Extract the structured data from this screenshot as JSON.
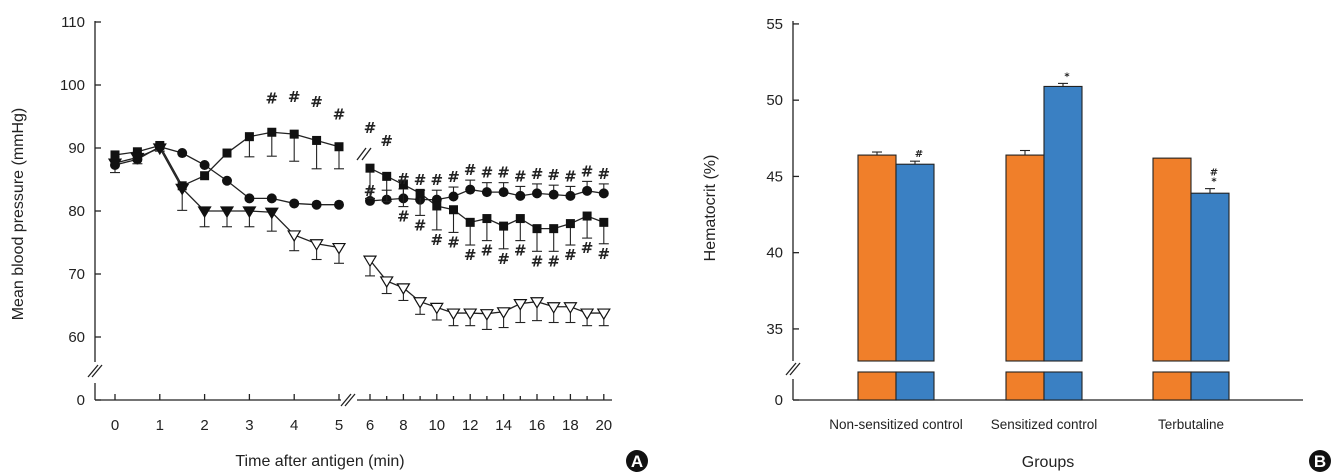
{
  "chart_data": [
    {
      "type": "line",
      "panel_label": "A",
      "xlabel": "Time after antigen (min)",
      "ylabel": "Mean blood pressure (mmHg)",
      "ylim": [
        0,
        110
      ],
      "yticks": [
        "0",
        "60",
        "70",
        "80",
        "90",
        "100",
        "110"
      ],
      "xticks": [
        "0",
        "1",
        "2",
        "3",
        "4",
        "5",
        "6",
        "8",
        "10",
        "12",
        "14",
        "16",
        "18",
        "20"
      ],
      "axis_breaks": {
        "x": "between 5 and 6",
        "y": "between 0 and 60"
      },
      "series": [
        {
          "marker": "circle",
          "x": [
            0,
            0.5,
            1,
            1.5,
            2,
            2.5,
            3,
            3.5,
            4,
            4.5,
            5,
            6,
            7,
            8,
            9,
            10,
            11,
            12,
            13,
            14,
            15,
            16,
            17,
            18,
            19,
            20
          ],
          "y": [
            87.3,
            88.2,
            90.2,
            89.2,
            87.3,
            84.8,
            82.0,
            82.0,
            81.2,
            81.0,
            81.0,
            81.6,
            81.8,
            82.0,
            81.8,
            81.8,
            82.3,
            83.4,
            83.0,
            83.0,
            82.4,
            82.8,
            82.6,
            82.4,
            83.2,
            82.8
          ],
          "err": [
            0,
            0,
            0,
            0,
            0,
            0,
            0,
            0,
            0,
            0,
            0,
            0,
            1.5,
            1.5,
            1.5,
            1.5,
            1.5,
            1.5,
            1.5,
            1.5,
            1.5,
            1.5,
            1.5,
            1.5,
            1.5,
            1.5
          ],
          "hash": [
            0,
            0,
            0,
            0,
            0,
            0,
            0,
            0,
            0,
            0,
            0,
            1,
            0,
            1,
            1,
            1,
            1,
            1,
            1,
            1,
            1,
            1,
            1,
            1,
            1,
            1
          ]
        },
        {
          "marker": "square",
          "x": [
            0,
            0.5,
            1,
            1.5,
            2,
            2.5,
            3,
            3.5,
            4,
            4.5,
            5,
            6,
            7,
            8,
            9,
            10,
            11,
            12,
            13,
            14,
            15,
            16,
            17,
            18,
            19,
            20
          ],
          "y": [
            88.9,
            89.4,
            90.4,
            84.0,
            85.6,
            89.2,
            91.8,
            92.5,
            92.2,
            91.2,
            90.2,
            86.8,
            85.5,
            84.2,
            82.8,
            80.8,
            80.2,
            78.2,
            78.8,
            77.6,
            78.8,
            77.2,
            77.2,
            78.0,
            79.2,
            78.2
          ],
          "err": [
            0,
            0,
            0,
            0,
            0,
            0,
            3.2,
            3.8,
            4.3,
            4.5,
            3.5,
            4.8,
            4.0,
            3.5,
            3.5,
            3.8,
            3.6,
            3.6,
            3.5,
            3.6,
            3.5,
            3.6,
            3.6,
            3.4,
            3.5,
            3.4
          ],
          "hash": [
            0,
            0,
            0,
            0,
            0,
            0,
            0,
            1,
            1,
            1,
            1,
            1,
            1,
            1,
            1,
            1,
            1,
            1,
            1,
            1,
            1,
            1,
            1,
            1,
            1,
            1
          ]
        },
        {
          "marker": "triangle-down",
          "x": [
            0,
            0.5,
            1,
            1.5,
            2,
            2.5,
            3,
            3.5,
            4,
            4.5,
            5,
            6,
            7,
            8,
            9,
            10,
            11,
            12,
            13,
            14,
            15,
            16,
            17,
            18,
            19,
            20
          ],
          "y": [
            87.6,
            88.5,
            90.0,
            83.6,
            80.0,
            80.0,
            80.0,
            79.8,
            76.2,
            74.8,
            74.2,
            72.2,
            68.9,
            67.8,
            65.6,
            64.7,
            63.8,
            63.8,
            63.7,
            64.0,
            65.3,
            65.6,
            64.8,
            64.8,
            63.8,
            63.8
          ],
          "err": [
            1.5,
            1.0,
            0.5,
            3.5,
            2.5,
            2.5,
            2.5,
            3.0,
            2.5,
            2.5,
            2.5,
            2.5,
            2.0,
            2.0,
            2.0,
            2.0,
            2.0,
            2.0,
            2.5,
            2.5,
            3.0,
            3.0,
            2.5,
            2.5,
            2.0,
            2.0
          ],
          "hash": []
        }
      ]
    },
    {
      "type": "bar",
      "panel_label": "B",
      "xlabel": "Groups",
      "ylabel": "Hematocrit (%)",
      "ylim": [
        0,
        55
      ],
      "yticks": [
        "0",
        "35",
        "40",
        "45",
        "50",
        "55"
      ],
      "categories": [
        "Non-sensitized control",
        "Sensitized control",
        "Terbutaline"
      ],
      "series": [
        {
          "values": [
            46.4,
            46.4,
            46.2
          ],
          "err": [
            0.2,
            0.3,
            0
          ],
          "color": "#f07f2a"
        },
        {
          "values": [
            45.8,
            50.9,
            43.9
          ],
          "err": [
            0.2,
            0.2,
            0.3
          ],
          "color": "#3a80c3"
        }
      ],
      "annotations": [
        {
          "category": 0,
          "series": 1,
          "marks": [
            "#"
          ]
        },
        {
          "category": 1,
          "series": 1,
          "marks": [
            "*"
          ]
        },
        {
          "category": 2,
          "series": 1,
          "marks": [
            "#",
            "*"
          ]
        }
      ]
    }
  ]
}
